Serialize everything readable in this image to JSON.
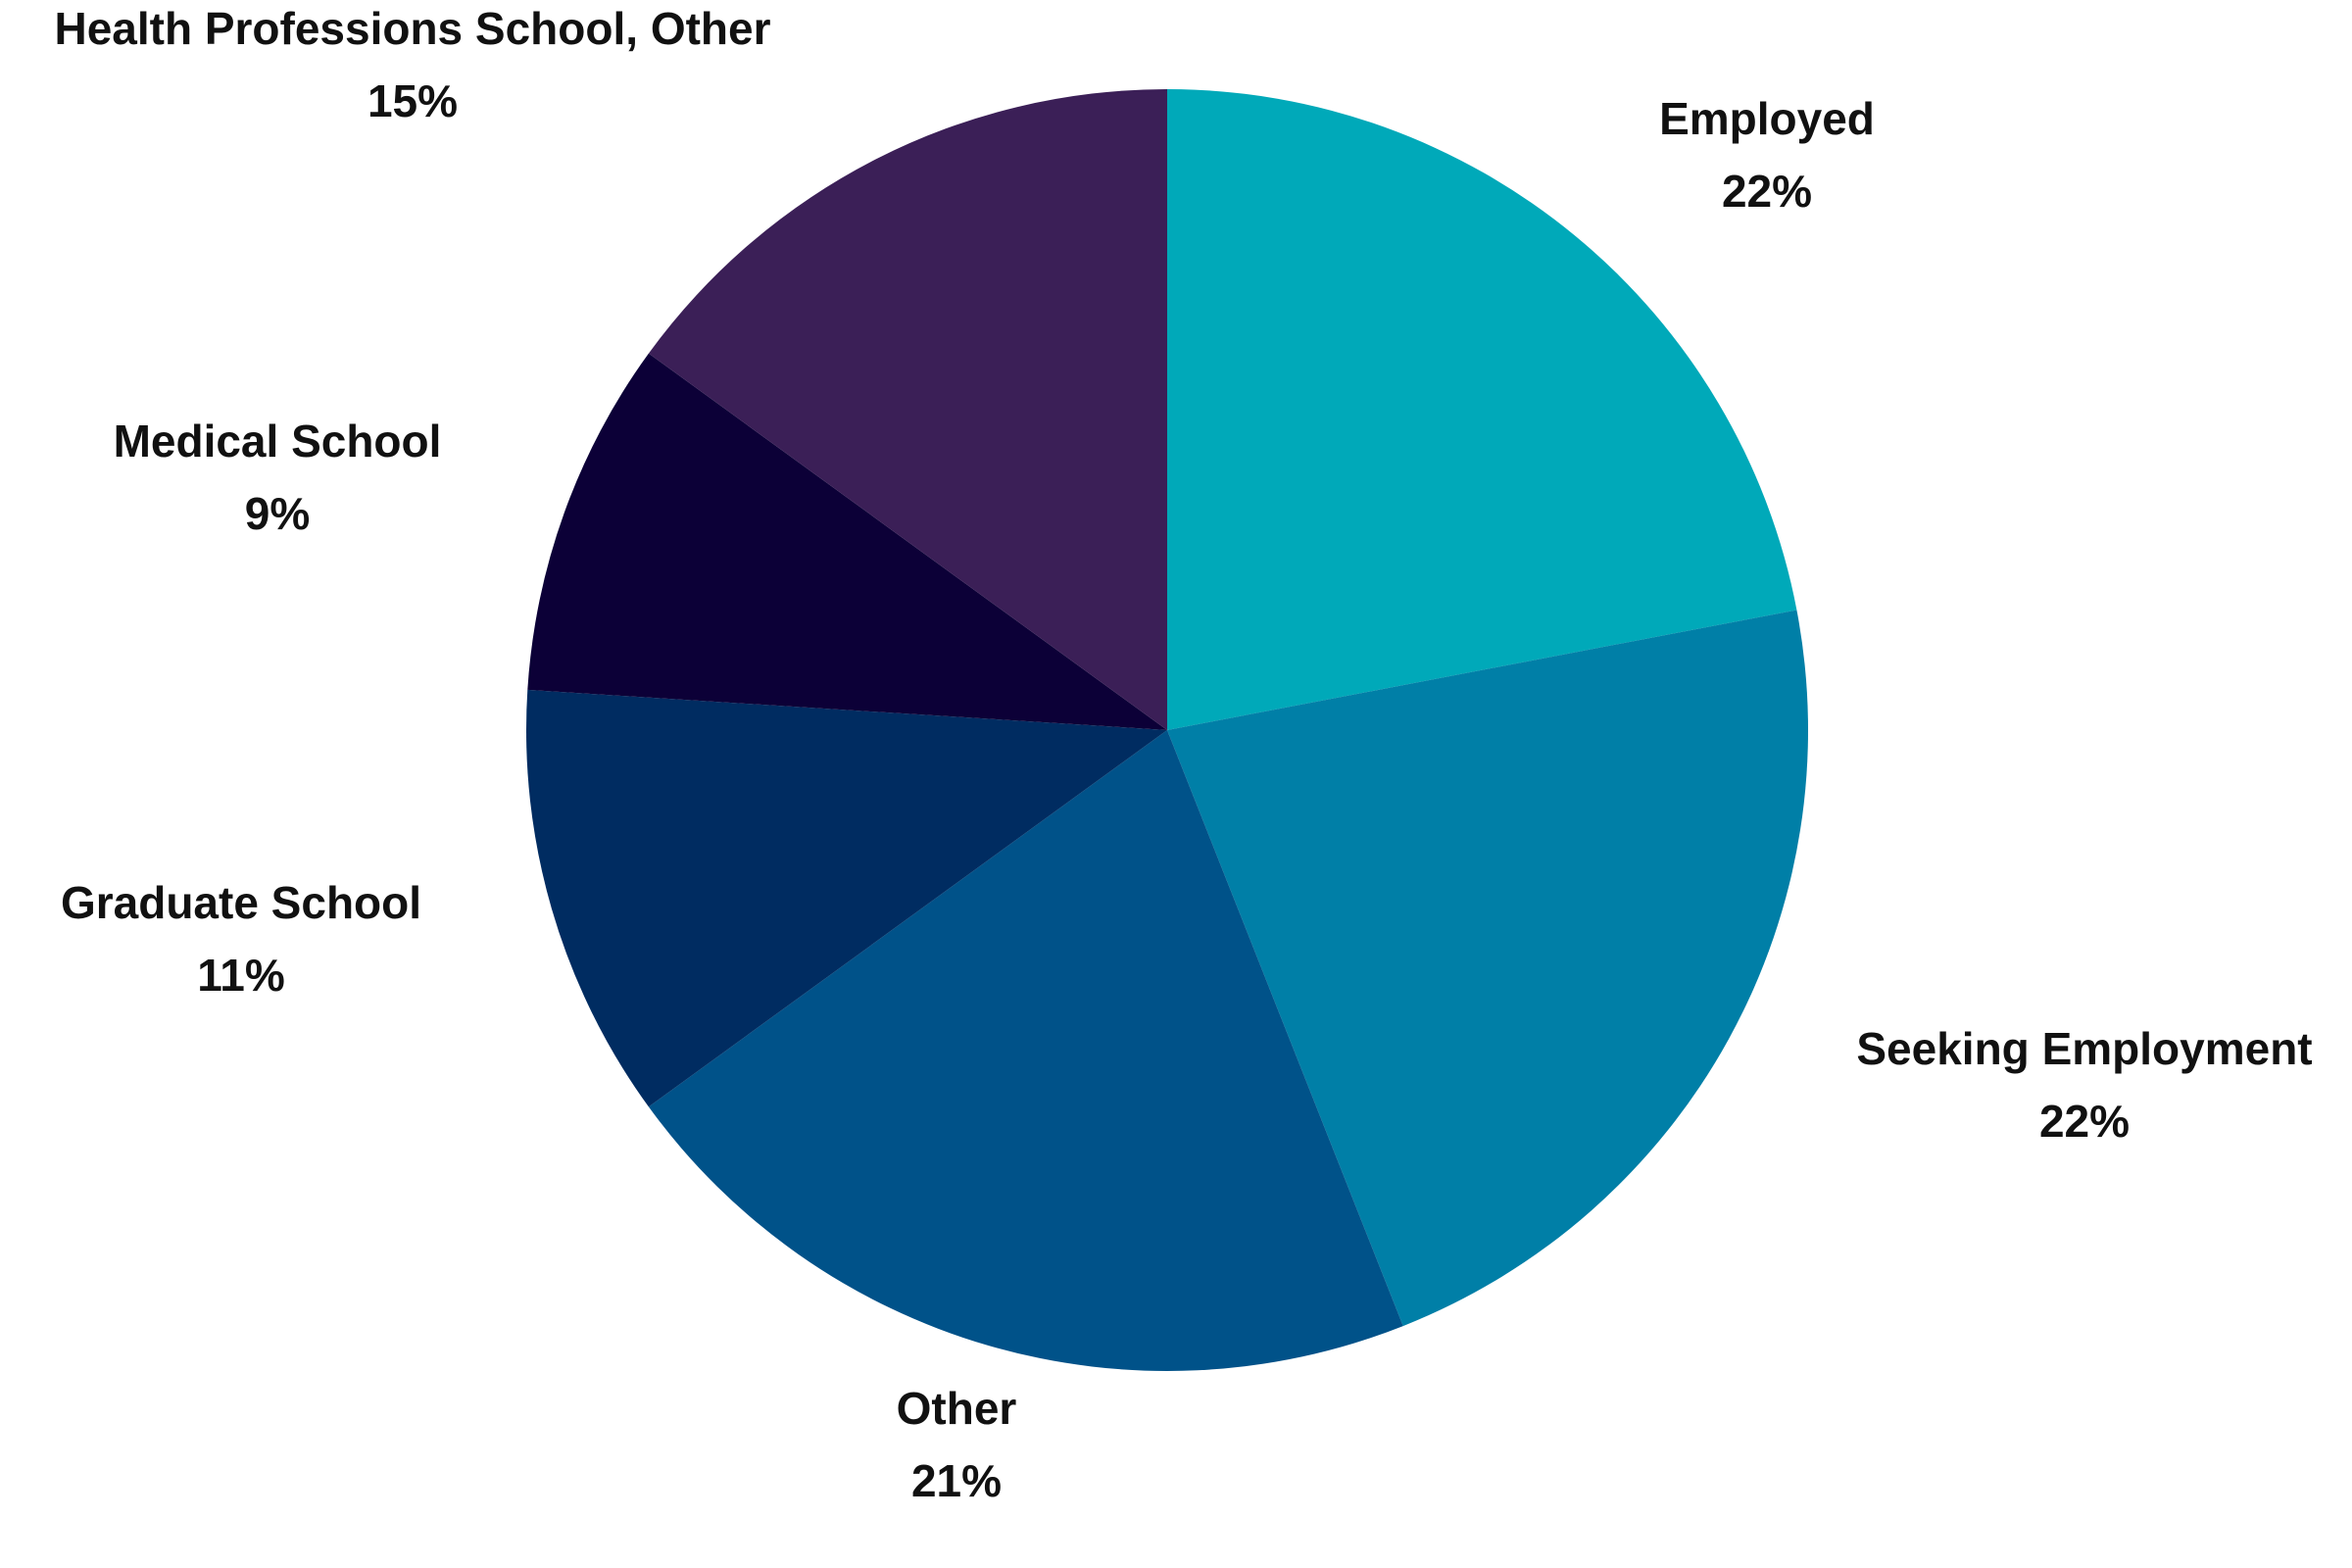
{
  "chart_data": {
    "type": "pie",
    "categories": [
      "Employed",
      "Seeking Employment",
      "Other",
      "Graduate School",
      "Medical School",
      "Health Professions School, Other"
    ],
    "values": [
      22,
      22,
      21,
      11,
      9,
      15
    ],
    "value_labels": [
      "22%",
      "22%",
      "21%",
      "11%",
      "9%",
      "15%"
    ],
    "colors": [
      "#00a9b9",
      "#007fa7",
      "#005289",
      "#002c61",
      "#0c0037",
      "#3b1f57"
    ]
  }
}
